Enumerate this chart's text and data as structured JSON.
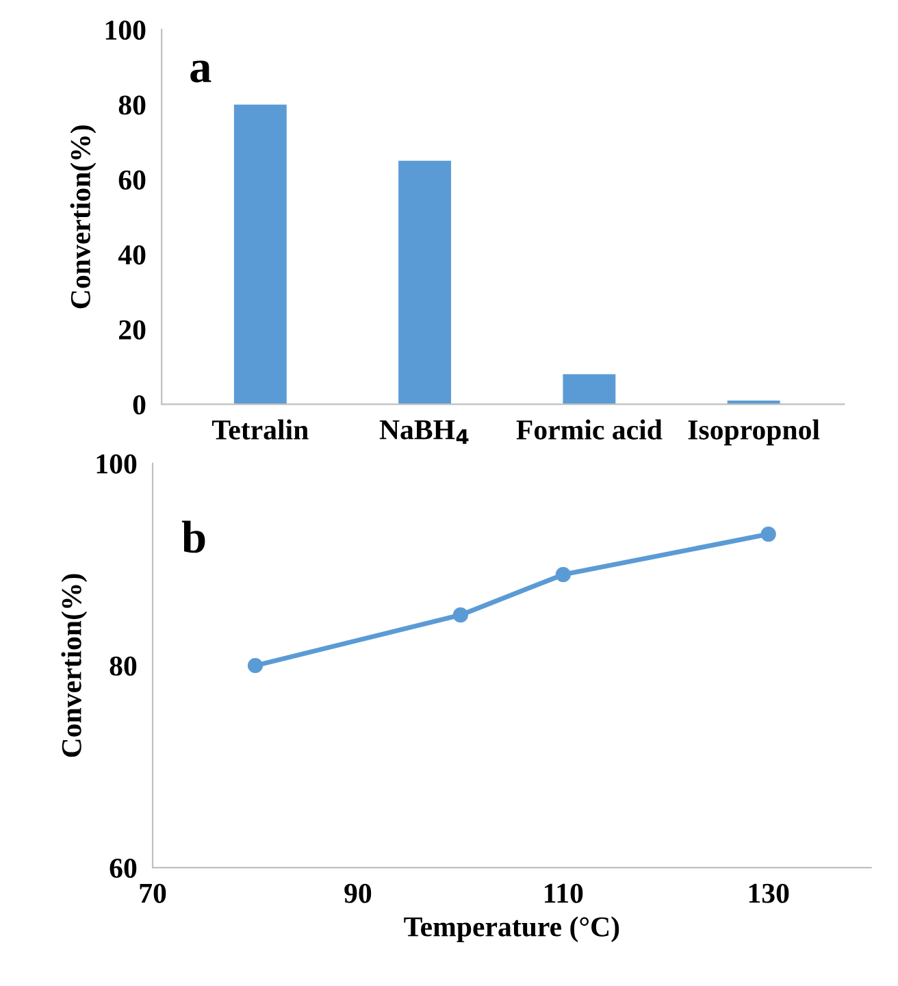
{
  "chart_data": [
    {
      "type": "bar",
      "ylabel": "Convertion(%)",
      "annotations": [
        "a"
      ],
      "categories": [
        "Tetralin",
        "NaBH$_{4}$",
        "Formic acid",
        "Isopropnol"
      ],
      "values": [
        80,
        65,
        8,
        1
      ],
      "color": "#5b9bd5",
      "ylim": [
        0,
        100
      ],
      "yticks": [
        0,
        20,
        40,
        60,
        80,
        100
      ],
      "grid": false,
      "legend": false
    },
    {
      "type": "line",
      "xlabel": "Temperature (°C)",
      "ylabel": "Convertion(%)",
      "annotations": [
        "b"
      ],
      "x": [
        80,
        100,
        110,
        130
      ],
      "values": [
        80,
        85,
        89,
        93
      ],
      "color": "#5b9bd5",
      "marker": "circle",
      "line_style": "solid",
      "xlim": [
        70,
        140
      ],
      "xticks": [
        70,
        90,
        110,
        130
      ],
      "ylim": [
        60,
        100
      ],
      "yticks": [
        60,
        80,
        100
      ],
      "grid": false,
      "legend": false
    }
  ]
}
